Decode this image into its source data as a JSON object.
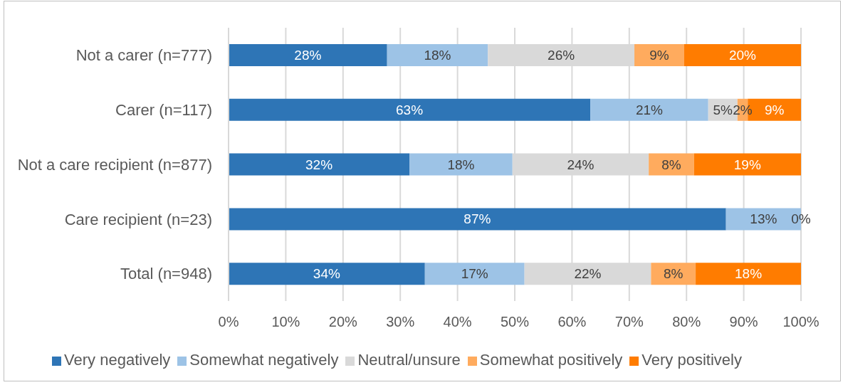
{
  "chart_data": {
    "type": "bar",
    "orientation": "horizontal",
    "stacked": true,
    "categories": [
      "Not a carer (n=777)",
      "Carer (n=117)",
      "Not a care recipient (n=877)",
      "Care recipient (n=23)",
      "Total (n=948)"
    ],
    "series": [
      {
        "name": "Very negatively",
        "color": "#2e75b6",
        "values": [
          27.7,
          63.2,
          31.6,
          86.9,
          34.3
        ],
        "value_labels": [
          "28%",
          "63%",
          "32%",
          "87%",
          "34%"
        ]
      },
      {
        "name": "Somewhat negatively",
        "color": "#9dc3e6",
        "values": [
          17.6,
          20.6,
          18.0,
          13.1,
          17.4
        ],
        "value_labels": [
          "18%",
          "21%",
          "18%",
          "13%",
          "17%"
        ]
      },
      {
        "name": "Neutral/unsure",
        "color": "#d9d9d9",
        "values": [
          25.6,
          5.1,
          23.8,
          0,
          22.1
        ],
        "value_labels": [
          "26%",
          "5%",
          "24%",
          "0%",
          "22%"
        ]
      },
      {
        "name": "Somewhat positively",
        "color": "#ffab5e",
        "values": [
          8.7,
          1.8,
          7.9,
          0,
          7.8
        ],
        "value_labels": [
          "9%",
          "2%",
          "8%",
          null,
          "8%"
        ]
      },
      {
        "name": "Very positively",
        "color": "#ff7c00",
        "values": [
          20.4,
          9.3,
          18.7,
          0,
          18.4
        ],
        "value_labels": [
          "20%",
          "9%",
          "19%",
          null,
          "18%"
        ]
      }
    ],
    "xlim": [
      0,
      100
    ],
    "xticks": [
      {
        "value": 0,
        "label": "0%"
      },
      {
        "value": 10,
        "label": "10%"
      },
      {
        "value": 20,
        "label": "20%"
      },
      {
        "value": 30,
        "label": "30%"
      },
      {
        "value": 40,
        "label": "40%"
      },
      {
        "value": 50,
        "label": "50%"
      },
      {
        "value": 60,
        "label": "60%"
      },
      {
        "value": 70,
        "label": "70%"
      },
      {
        "value": 80,
        "label": "80%"
      },
      {
        "value": 90,
        "label": "90%"
      },
      {
        "value": 100,
        "label": "100%"
      }
    ],
    "grid": "x",
    "legend": "bottom"
  }
}
